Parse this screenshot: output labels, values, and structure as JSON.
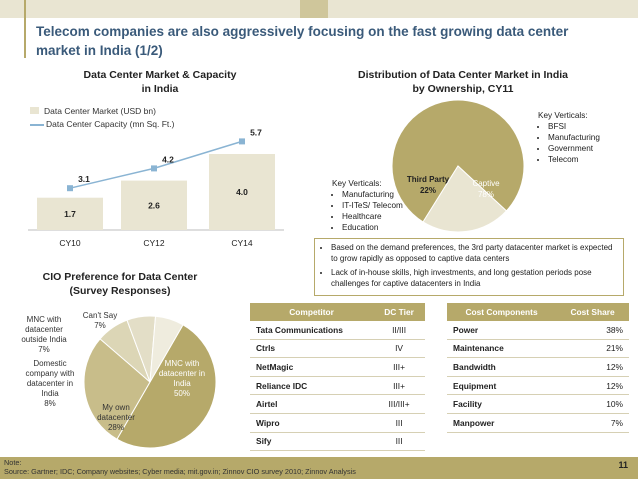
{
  "title": "Telecom companies are also aggressively focusing on the fast growing data center market in India (1/2)",
  "colors": {
    "olive": "#b6a96a",
    "olive_light": "#e9e5d2",
    "olive_mid": "#cfc69b",
    "olive_dark": "#8f8550",
    "line_blue": "#8ab4d3",
    "title_blue": "#3a5a7a"
  },
  "chart_data": [
    {
      "type": "bar",
      "title": "Data Center Market & Capacity in India",
      "categories": [
        "CY10",
        "CY12",
        "CY14"
      ],
      "series": [
        {
          "name": "Data Center Market (USD bn)",
          "kind": "bar",
          "values": [
            1.7,
            2.6,
            4.0
          ],
          "labels": [
            "1.7",
            "2.6",
            "4.0"
          ]
        },
        {
          "name": "Data Center Capacity (mn Sq. Ft.)",
          "kind": "line",
          "values": [
            3.1,
            4.2,
            5.7
          ],
          "labels": [
            "3.1",
            "4.2",
            "5.7"
          ]
        }
      ],
      "ylim": [
        0,
        6
      ]
    },
    {
      "type": "pie",
      "title": "Distribution of Data Center Market in India by Ownership, CY11",
      "slices": [
        {
          "label": "Captive",
          "value": 78,
          "pct": "78%"
        },
        {
          "label": "Third Party",
          "value": 22,
          "pct": "22%"
        }
      ],
      "key_verticals_captive": {
        "heading": "Key Verticals:",
        "items": [
          "BFSI",
          "Manufacturing",
          "Government",
          "Telecom"
        ]
      },
      "key_verticals_third_party": {
        "heading": "Key Verticals:",
        "items": [
          "Manufacturing",
          "IT-ITeS/ Telecom",
          "Healthcare",
          "Education"
        ]
      }
    },
    {
      "type": "pie",
      "title": "CIO Preference for Data Center (Survey Responses)",
      "slices": [
        {
          "label": "MNC with datacenter in India",
          "value": 50,
          "pct": "50%"
        },
        {
          "label": "My own datacenter",
          "value": 28,
          "pct": "28%"
        },
        {
          "label": "Domestic company with datacenter in India",
          "value": 8,
          "pct": "8%"
        },
        {
          "label": "MNC with datacenter outside India",
          "value": 7,
          "pct": "7%"
        },
        {
          "label": "Can't Say",
          "value": 7,
          "pct": "7%"
        }
      ]
    },
    {
      "type": "table",
      "headers": [
        "Competitor",
        "DC Tier"
      ],
      "rows": [
        [
          "Tata Communications",
          "II/III"
        ],
        [
          "Ctrls",
          "IV"
        ],
        [
          "NetMagic",
          "III+"
        ],
        [
          "Reliance IDC",
          "III+"
        ],
        [
          "Airtel",
          "III/III+"
        ],
        [
          "Wipro",
          "III"
        ],
        [
          "Sify",
          "III"
        ]
      ]
    },
    {
      "type": "table",
      "headers": [
        "Cost Components",
        "Cost Share"
      ],
      "rows": [
        [
          "Power",
          "38%"
        ],
        [
          "Maintenance",
          "21%"
        ],
        [
          "Bandwidth",
          "12%"
        ],
        [
          "Equipment",
          "12%"
        ],
        [
          "Facility",
          "10%"
        ],
        [
          "Manpower",
          "7%"
        ]
      ]
    }
  ],
  "notes": [
    "Based on the demand preferences, the 3rd party datacenter market is expected to grow rapidly as opposed to captive data centers",
    "Lack of in-house skills, high investments, and long gestation periods pose challenges for captive datacenters in India"
  ],
  "footnote": {
    "note": "Note:",
    "source": "Source: Gartner; IDC; Company websites; Cyber media; mit.gov.in; Zinnov CIO survey 2010; Zinnov Analysis"
  },
  "page_number": "11"
}
